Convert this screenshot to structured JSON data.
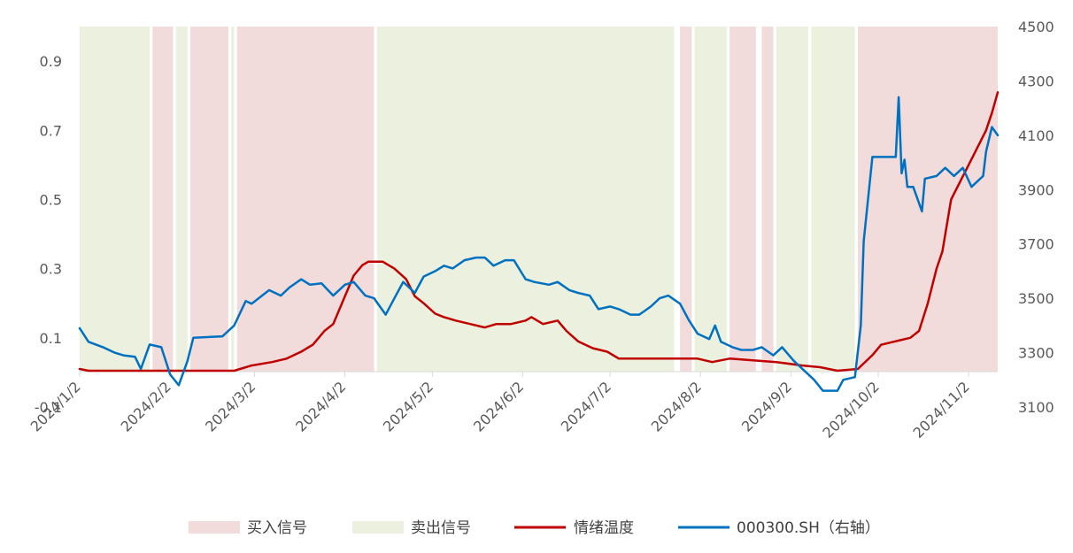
{
  "chart_data": {
    "type": "line",
    "x_tick_labels": [
      "2024/1/2",
      "2024/2/2",
      "2024/3/2",
      "2024/4/2",
      "2024/5/2",
      "2024/6/2",
      "2024/7/2",
      "2024/8/2",
      "2024/9/2",
      "2024/10/2",
      "2024/11/2"
    ],
    "x_range": [
      "2024-01-02",
      "2024-11-12"
    ],
    "y_left": {
      "ticks": [
        "-0.1",
        "0.1",
        "0.3",
        "0.5",
        "0.7",
        "0.9"
      ],
      "tick_values": [
        -0.1,
        0.1,
        0.3,
        0.5,
        0.7,
        0.9
      ],
      "range": [
        -0.1,
        1.0
      ]
    },
    "y_right": {
      "ticks": [
        "3100",
        "3300",
        "3500",
        "3700",
        "3900",
        "4100",
        "4300",
        "4500"
      ],
      "tick_values": [
        3100,
        3300,
        3500,
        3700,
        3900,
        4100,
        4300,
        4500
      ],
      "range": [
        3100,
        4500
      ]
    },
    "grid": false,
    "legend_position": "bottom",
    "colors": {
      "buy": "#f2dcdb",
      "sell": "#ebf1de",
      "temperature": "#c00000",
      "index": "#0070c0"
    },
    "signal_periods": {
      "buy": [
        [
          "2024-01-27",
          "2024-02-03"
        ],
        [
          "2024-02-09",
          "2024-02-22"
        ],
        [
          "2024-02-25",
          "2024-04-12"
        ],
        [
          "2024-07-26",
          "2024-07-30"
        ],
        [
          "2024-08-12",
          "2024-08-21"
        ],
        [
          "2024-08-23",
          "2024-08-27"
        ],
        [
          "2024-09-25",
          "2024-11-12"
        ]
      ],
      "sell": [
        [
          "2024-01-02",
          "2024-01-26"
        ],
        [
          "2024-02-04",
          "2024-02-08"
        ],
        [
          "2024-02-23",
          "2024-02-24"
        ],
        [
          "2024-04-13",
          "2024-07-24"
        ],
        [
          "2024-07-31",
          "2024-08-11"
        ],
        [
          "2024-08-28",
          "2024-09-08"
        ],
        [
          "2024-09-09",
          "2024-09-24"
        ]
      ]
    },
    "series": [
      {
        "name": "情绪温度",
        "axis": "left",
        "points": [
          [
            "2024-01-02",
            0.01
          ],
          [
            "2024-01-05",
            0.005
          ],
          [
            "2024-02-15",
            0.005
          ],
          [
            "2024-02-24",
            0.005
          ],
          [
            "2024-03-01",
            0.02
          ],
          [
            "2024-03-08",
            0.03
          ],
          [
            "2024-03-13",
            0.04
          ],
          [
            "2024-03-18",
            0.06
          ],
          [
            "2024-03-22",
            0.08
          ],
          [
            "2024-03-26",
            0.12
          ],
          [
            "2024-03-29",
            0.14
          ],
          [
            "2024-04-02",
            0.22
          ],
          [
            "2024-04-05",
            0.28
          ],
          [
            "2024-04-08",
            0.31
          ],
          [
            "2024-04-10",
            0.32
          ],
          [
            "2024-04-15",
            0.32
          ],
          [
            "2024-04-19",
            0.3
          ],
          [
            "2024-04-23",
            0.27
          ],
          [
            "2024-04-26",
            0.22
          ],
          [
            "2024-04-29",
            0.2
          ],
          [
            "2024-05-03",
            0.17
          ],
          [
            "2024-05-06",
            0.16
          ],
          [
            "2024-05-10",
            0.15
          ],
          [
            "2024-05-15",
            0.14
          ],
          [
            "2024-05-20",
            0.13
          ],
          [
            "2024-05-24",
            0.14
          ],
          [
            "2024-05-29",
            0.14
          ],
          [
            "2024-06-03",
            0.15
          ],
          [
            "2024-06-05",
            0.16
          ],
          [
            "2024-06-09",
            0.14
          ],
          [
            "2024-06-14",
            0.15
          ],
          [
            "2024-06-17",
            0.12
          ],
          [
            "2024-06-21",
            0.09
          ],
          [
            "2024-06-26",
            0.07
          ],
          [
            "2024-07-01",
            0.06
          ],
          [
            "2024-07-05",
            0.04
          ],
          [
            "2024-07-10",
            0.04
          ],
          [
            "2024-07-15",
            0.04
          ],
          [
            "2024-07-22",
            0.04
          ],
          [
            "2024-08-01",
            0.04
          ],
          [
            "2024-08-06",
            0.03
          ],
          [
            "2024-08-12",
            0.04
          ],
          [
            "2024-08-20",
            0.035
          ],
          [
            "2024-08-28",
            0.03
          ],
          [
            "2024-09-06",
            0.02
          ],
          [
            "2024-09-12",
            0.015
          ],
          [
            "2024-09-18",
            0.005
          ],
          [
            "2024-09-25",
            0.01
          ],
          [
            "2024-09-30",
            0.05
          ],
          [
            "2024-10-03",
            0.08
          ],
          [
            "2024-10-08",
            0.09
          ],
          [
            "2024-10-13",
            0.1
          ],
          [
            "2024-10-16",
            0.12
          ],
          [
            "2024-10-19",
            0.2
          ],
          [
            "2024-10-22",
            0.3
          ],
          [
            "2024-10-24",
            0.35
          ],
          [
            "2024-10-27",
            0.5
          ],
          [
            "2024-10-30",
            0.55
          ],
          [
            "2024-11-02",
            0.6
          ],
          [
            "2024-11-05",
            0.65
          ],
          [
            "2024-11-08",
            0.7
          ],
          [
            "2024-11-10",
            0.75
          ],
          [
            "2024-11-12",
            0.81
          ]
        ]
      },
      {
        "name": "000300.SH（右轴）",
        "axis": "right",
        "points": [
          [
            "2024-01-02",
            3390
          ],
          [
            "2024-01-05",
            3340
          ],
          [
            "2024-01-10",
            3320
          ],
          [
            "2024-01-14",
            3300
          ],
          [
            "2024-01-17",
            3290
          ],
          [
            "2024-01-21",
            3285
          ],
          [
            "2024-01-23",
            3240
          ],
          [
            "2024-01-26",
            3330
          ],
          [
            "2024-01-30",
            3320
          ],
          [
            "2024-02-02",
            3220
          ],
          [
            "2024-02-05",
            3180
          ],
          [
            "2024-02-08",
            3270
          ],
          [
            "2024-02-10",
            3355
          ],
          [
            "2024-02-20",
            3360
          ],
          [
            "2024-02-24",
            3400
          ],
          [
            "2024-02-28",
            3490
          ],
          [
            "2024-03-01",
            3480
          ],
          [
            "2024-03-04",
            3505
          ],
          [
            "2024-03-07",
            3530
          ],
          [
            "2024-03-11",
            3510
          ],
          [
            "2024-03-14",
            3540
          ],
          [
            "2024-03-18",
            3570
          ],
          [
            "2024-03-21",
            3550
          ],
          [
            "2024-03-25",
            3555
          ],
          [
            "2024-03-29",
            3510
          ],
          [
            "2024-04-02",
            3550
          ],
          [
            "2024-04-05",
            3560
          ],
          [
            "2024-04-09",
            3510
          ],
          [
            "2024-04-12",
            3500
          ],
          [
            "2024-04-16",
            3440
          ],
          [
            "2024-04-19",
            3500
          ],
          [
            "2024-04-22",
            3560
          ],
          [
            "2024-04-26",
            3520
          ],
          [
            "2024-04-29",
            3580
          ],
          [
            "2024-05-03",
            3600
          ],
          [
            "2024-05-06",
            3620
          ],
          [
            "2024-05-09",
            3610
          ],
          [
            "2024-05-13",
            3640
          ],
          [
            "2024-05-17",
            3650
          ],
          [
            "2024-05-20",
            3650
          ],
          [
            "2024-05-23",
            3620
          ],
          [
            "2024-05-27",
            3640
          ],
          [
            "2024-05-30",
            3640
          ],
          [
            "2024-06-03",
            3570
          ],
          [
            "2024-06-06",
            3560
          ],
          [
            "2024-06-11",
            3550
          ],
          [
            "2024-06-14",
            3560
          ],
          [
            "2024-06-18",
            3530
          ],
          [
            "2024-06-21",
            3520
          ],
          [
            "2024-06-25",
            3510
          ],
          [
            "2024-06-28",
            3460
          ],
          [
            "2024-07-02",
            3470
          ],
          [
            "2024-07-05",
            3460
          ],
          [
            "2024-07-09",
            3440
          ],
          [
            "2024-07-12",
            3440
          ],
          [
            "2024-07-16",
            3470
          ],
          [
            "2024-07-19",
            3500
          ],
          [
            "2024-07-22",
            3510
          ],
          [
            "2024-07-26",
            3480
          ],
          [
            "2024-07-29",
            3420
          ],
          [
            "2024-08-01",
            3370
          ],
          [
            "2024-08-05",
            3350
          ],
          [
            "2024-08-07",
            3400
          ],
          [
            "2024-08-09",
            3340
          ],
          [
            "2024-08-13",
            3320
          ],
          [
            "2024-08-16",
            3310
          ],
          [
            "2024-08-20",
            3310
          ],
          [
            "2024-08-23",
            3320
          ],
          [
            "2024-08-27",
            3290
          ],
          [
            "2024-08-30",
            3320
          ],
          [
            "2024-09-03",
            3270
          ],
          [
            "2024-09-06",
            3240
          ],
          [
            "2024-09-10",
            3200
          ],
          [
            "2024-09-13",
            3160
          ],
          [
            "2024-09-18",
            3160
          ],
          [
            "2024-09-20",
            3200
          ],
          [
            "2024-09-24",
            3210
          ],
          [
            "2024-09-26",
            3400
          ],
          [
            "2024-09-27",
            3710
          ],
          [
            "2024-09-30",
            4020
          ],
          [
            "2024-10-08",
            4020
          ],
          [
            "2024-10-09",
            4240
          ],
          [
            "2024-10-10",
            3960
          ],
          [
            "2024-10-11",
            4010
          ],
          [
            "2024-10-12",
            3910
          ],
          [
            "2024-10-14",
            3910
          ],
          [
            "2024-10-17",
            3820
          ],
          [
            "2024-10-18",
            3940
          ],
          [
            "2024-10-22",
            3950
          ],
          [
            "2024-10-25",
            3980
          ],
          [
            "2024-10-28",
            3950
          ],
          [
            "2024-10-31",
            3980
          ],
          [
            "2024-11-03",
            3910
          ],
          [
            "2024-11-07",
            3950
          ],
          [
            "2024-11-08",
            4040
          ],
          [
            "2024-11-10",
            4130
          ],
          [
            "2024-11-12",
            4100
          ]
        ]
      }
    ]
  },
  "legend": {
    "buy_label": "买入信号",
    "sell_label": "卖出信号",
    "temperature_label": "情绪温度",
    "index_label": "000300.SH（右轴）"
  }
}
